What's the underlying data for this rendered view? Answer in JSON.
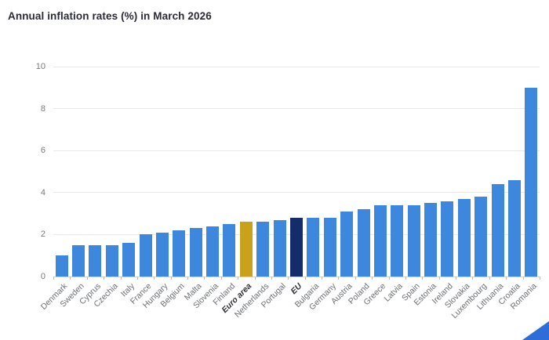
{
  "chart_data": {
    "type": "bar",
    "title": "Annual inflation rates (%) in March 2026",
    "categories": [
      "Denmark",
      "Sweden",
      "Cyprus",
      "Czechia",
      "Italy",
      "France",
      "Hungary",
      "Belgium",
      "Malta",
      "Slovenia",
      "Finland",
      "Euro area",
      "Netherlands",
      "Portugal",
      "EU",
      "Bulgaria",
      "Germany",
      "Austria",
      "Poland",
      "Greece",
      "Latvia",
      "Spain",
      "Estonia",
      "Ireland",
      "Slovakia",
      "Luxembourg",
      "Lithuania",
      "Croatia",
      "Romania"
    ],
    "values": [
      1.0,
      1.5,
      1.5,
      1.5,
      1.6,
      2.0,
      2.1,
      2.2,
      2.3,
      2.4,
      2.5,
      2.6,
      2.6,
      2.7,
      2.8,
      2.8,
      2.8,
      3.1,
      3.2,
      3.4,
      3.4,
      3.4,
      3.5,
      3.6,
      3.7,
      3.8,
      4.4,
      4.6,
      9.0
    ],
    "xlabel": "",
    "ylabel": "",
    "ylim": [
      0,
      10
    ],
    "yticks": [
      0,
      2,
      4,
      6,
      8,
      10
    ],
    "grid": true,
    "legend_position": "none",
    "colors": {
      "default": "#3d87dd",
      "Euro area": "#c9a21b",
      "EU": "#122d69"
    },
    "bold_categories": [
      "Euro area",
      "EU"
    ]
  },
  "decor": {
    "corner_shape": "blue-triangle",
    "corner_color": "#2e6cd8"
  }
}
